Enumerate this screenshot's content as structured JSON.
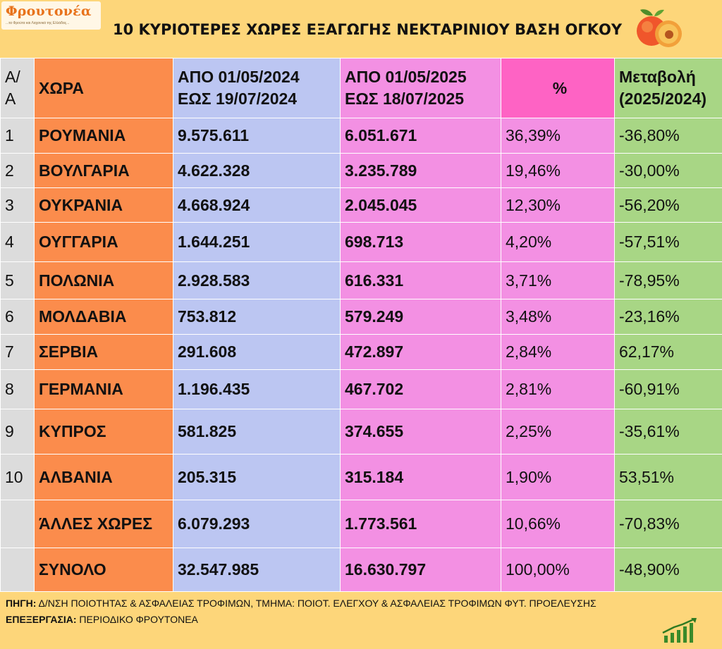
{
  "logo": {
    "name": "Φρουτονέα",
    "tagline": "...τα Φρούτα και Λαχανικά της Ελλάδας..."
  },
  "title": "10 ΚΥΡΙΟΤΕΡΕΣ ΧΩΡΕΣ ΕΞΑΓΩΓΗΣ ΝΕΚΤΑΡΙΝΙΟΥ ΒΑΣΗ ΟΓΚΟΥ",
  "colors": {
    "background": "#fdd67a",
    "country_col": "#fb8c4c",
    "period_2024_col": "#bcc6f2",
    "period_2025_col": "#f390e3",
    "pct_header": "#fe63c4",
    "change_col": "#a8d685",
    "index_col": "#dcdcdc"
  },
  "table": {
    "headers": {
      "aa_line1": "Α/",
      "aa_line2": "Α",
      "country": "ΧΩΡΑ",
      "y2024_line1": "ΑΠΟ 01/05/2024",
      "y2024_line2": "ΕΩΣ  19/07/2024",
      "y2025_line1": "ΑΠΟ 01/05/2025",
      "y2025_line2": "ΕΩΣ  18/07/2025",
      "pct": "%",
      "change_line1": "Μεταβολή",
      "change_line2": "(2025/2024)"
    },
    "rows": [
      {
        "aa": "1",
        "country": "ΡΟΥΜΑΝΙΑ",
        "y2024": "9.575.611",
        "y2025": "6.051.671",
        "pct": "36,39%",
        "change": "-36,80%"
      },
      {
        "aa": "2",
        "country": "ΒΟΥΛΓΑΡΙΑ",
        "y2024": "4.622.328",
        "y2025": "3.235.789",
        "pct": "19,46%",
        "change": "-30,00%"
      },
      {
        "aa": "3",
        "country": "ΟΥΚΡΑΝΙΑ",
        "y2024": "4.668.924",
        "y2025": "2.045.045",
        "pct": "12,30%",
        "change": "-56,20%"
      },
      {
        "aa": "4",
        "country": "ΟΥΓΓΑΡΙΑ",
        "y2024": "1.644.251",
        "y2025": "698.713",
        "pct": "4,20%",
        "change": "-57,51%"
      },
      {
        "aa": "5",
        "country": "ΠΟΛΩΝΙΑ",
        "y2024": "2.928.583",
        "y2025": "616.331",
        "pct": "3,71%",
        "change": "-78,95%"
      },
      {
        "aa": "6",
        "country": "ΜΟΛΔΑΒΙΑ",
        "y2024": "753.812",
        "y2025": "579.249",
        "pct": "3,48%",
        "change": "-23,16%"
      },
      {
        "aa": "7",
        "country": "ΣΕΡΒΙΑ",
        "y2024": "291.608",
        "y2025": "472.897",
        "pct": "2,84%",
        "change": "62,17%"
      },
      {
        "aa": "8",
        "country": "ΓΕΡΜΑΝΙΑ",
        "y2024": "1.196.435",
        "y2025": "467.702",
        "pct": "2,81%",
        "change": "-60,91%"
      },
      {
        "aa": "9",
        "country": "ΚΥΠΡΟΣ",
        "y2024": "581.825",
        "y2025": "374.655",
        "pct": "2,25%",
        "change": "-35,61%"
      },
      {
        "aa": "10",
        "country": "ΑΛΒΑΝΙΑ",
        "y2024": "205.315",
        "y2025": "315.184",
        "pct": "1,90%",
        "change": "53,51%"
      },
      {
        "aa": "",
        "country": "ΆΛΛΕΣ ΧΩΡΕΣ",
        "y2024": "6.079.293",
        "y2025": "1.773.561",
        "pct": "10,66%",
        "change": "-70,83%"
      },
      {
        "aa": "",
        "country": "ΣΥΝΟΛΟ",
        "y2024": "32.547.985",
        "y2025": "16.630.797",
        "pct": "100,00%",
        "change": "-48,90%"
      }
    ]
  },
  "footer": {
    "source_label": "ΠΗΓΗ:",
    "source_text": " Δ/ΝΣΗ ΠΟΙΟΤΗΤΑΣ & ΑΣΦΑΛΕΙΑΣ ΤΡΟΦΙΜΩΝ, ΤΜΗΜΑ: ΠΟΙΟΤ. ΕΛΕΓΧΟΥ & ΑΣΦΑΛΕΙΑΣ ΤΡΟΦΙΜΩΝ ΦΥΤ. ΠΡΟΕΛΕΥΣΗΣ",
    "processing_label": "ΕΠΕΞΕΡΓΑΣΙΑ:",
    "processing_text": " ΠΕΡΙΟΔΙΚΟ ΦΡΟΥΤΟΝΕΑ"
  },
  "icons": {
    "peach": "peach-icon",
    "growth": "growth-chart-icon"
  }
}
